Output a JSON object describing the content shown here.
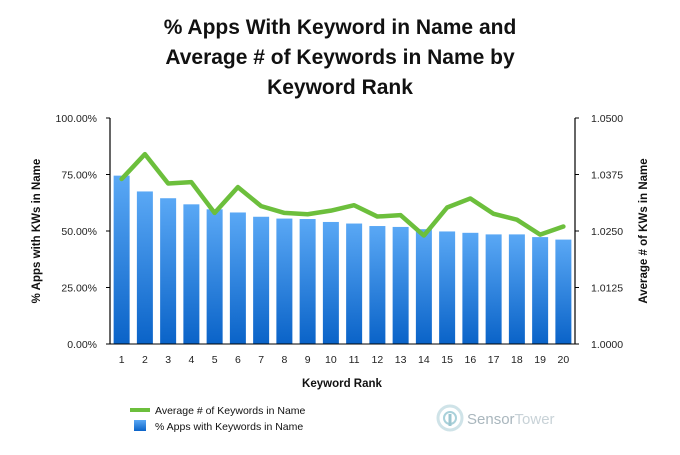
{
  "chart_data": {
    "type": "bar",
    "title_lines": [
      "% Apps With Keyword in Name and",
      "Average # of Keywords in Name by",
      "Keyword Rank"
    ],
    "xlabel": "Keyword Rank",
    "ylabel_left": "% Apps with KWs in Name",
    "ylabel_right": "Average # of KWs in Name",
    "categories": [
      "1",
      "2",
      "3",
      "4",
      "5",
      "6",
      "7",
      "8",
      "9",
      "10",
      "11",
      "12",
      "13",
      "14",
      "15",
      "16",
      "17",
      "18",
      "19",
      "20"
    ],
    "y_left": {
      "min": 0,
      "max": 1,
      "ticks": [
        "0.00%",
        "25.00%",
        "50.00%",
        "75.00%",
        "100.00%"
      ]
    },
    "y_right": {
      "min": 1.0,
      "max": 1.05,
      "ticks": [
        "1.0000",
        "1.0125",
        "1.0250",
        "1.0375",
        "1.0500"
      ]
    },
    "series": [
      {
        "name": "% Apps with Keywords in Name",
        "type": "bar",
        "axis": "left",
        "color": "#1f7ee0",
        "values": [
          0.745,
          0.675,
          0.645,
          0.618,
          0.596,
          0.582,
          0.563,
          0.555,
          0.553,
          0.54,
          0.533,
          0.522,
          0.518,
          0.508,
          0.498,
          0.492,
          0.485,
          0.485,
          0.473,
          0.462
        ]
      },
      {
        "name": "Average # of Keywords in Name",
        "type": "line",
        "axis": "right",
        "color": "#6cbf3c",
        "values": [
          1.0365,
          1.042,
          1.0355,
          1.0358,
          1.029,
          1.0347,
          1.0305,
          1.029,
          1.0287,
          1.0295,
          1.0307,
          1.0282,
          1.0285,
          1.024,
          1.0302,
          1.0322,
          1.0288,
          1.0275,
          1.0242,
          1.026
        ]
      }
    ],
    "legend": {
      "position": "bottom-left"
    },
    "grid": false
  },
  "branding": {
    "sensor": "Sensor",
    "tower": "Tower",
    "logo_icon": "sensortower-logo-icon"
  }
}
